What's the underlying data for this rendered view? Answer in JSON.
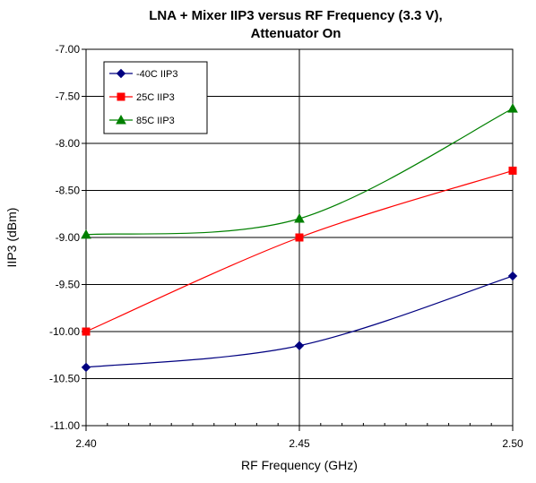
{
  "chart_data": {
    "type": "line",
    "title": "LNA + Mixer IIP3 versus RF Frequency (3.3 V),",
    "subtitle": "Attenuator On",
    "xlabel": "RF Frequency (GHz)",
    "ylabel": "IIP3 (dBm)",
    "xlim": [
      2.4,
      2.5
    ],
    "ylim": [
      -11.0,
      -7.0
    ],
    "x_ticks": [
      "2.40",
      "2.45",
      "2.50"
    ],
    "y_ticks": [
      "-7.00",
      "-7.50",
      "-8.00",
      "-8.50",
      "-9.00",
      "-9.50",
      "-10.00",
      "-10.50",
      "-11.00"
    ],
    "grid": "horizontal and vertical major gridlines",
    "legend_position": "top-left",
    "series": [
      {
        "name": "-40C IIP3",
        "color": "#000080",
        "marker": "diamond",
        "x": [
          2.4,
          2.45,
          2.5
        ],
        "y": [
          -10.38,
          -10.15,
          -9.41
        ]
      },
      {
        "name": "25C IIP3",
        "color": "#ff0000",
        "marker": "square",
        "x": [
          2.4,
          2.45,
          2.5
        ],
        "y": [
          -10.0,
          -9.0,
          -8.29
        ]
      },
      {
        "name": "85C IIP3",
        "color": "#008000",
        "marker": "triangle",
        "x": [
          2.4,
          2.45,
          2.5
        ],
        "y": [
          -8.97,
          -8.8,
          -7.63
        ]
      }
    ]
  }
}
